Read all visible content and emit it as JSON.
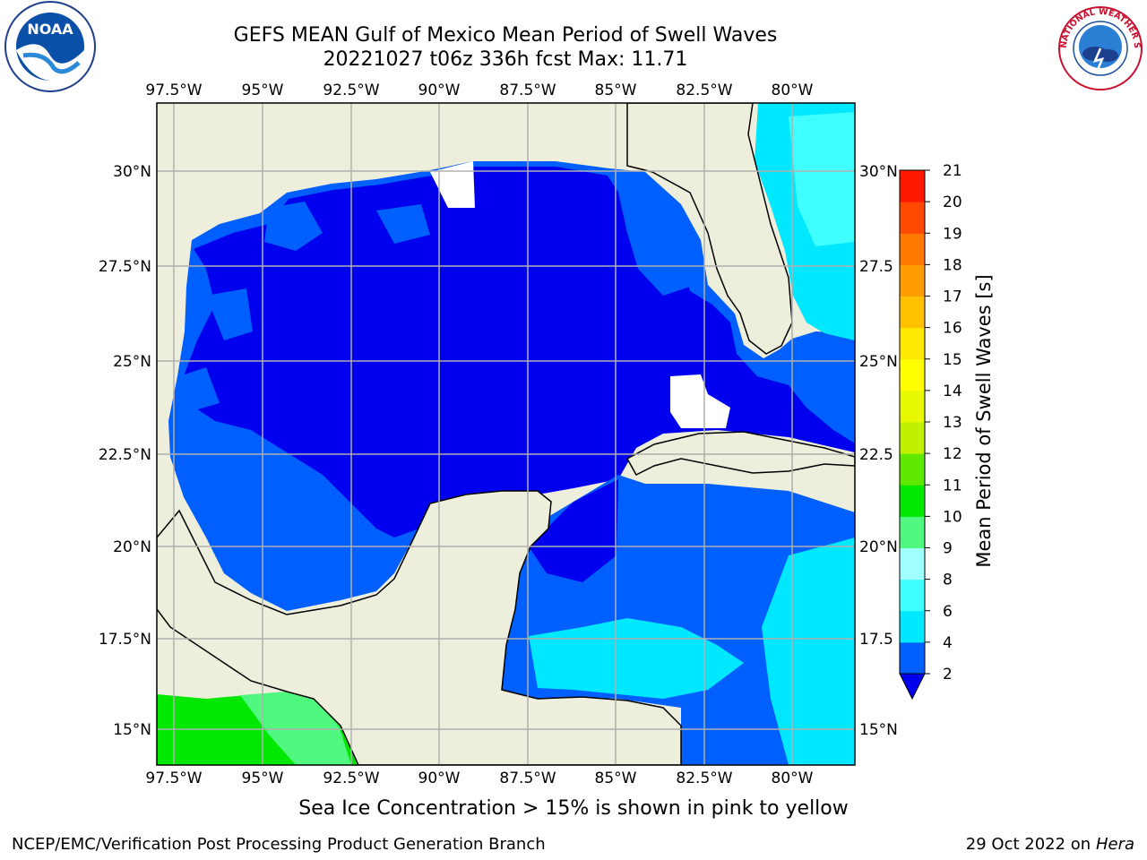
{
  "title": {
    "line1": "GEFS MEAN Gulf of Mexico Mean Period of Swell Waves",
    "line2": "20221027 t06z 336h fcst   Max: 11.71"
  },
  "map": {
    "lon_labels": [
      "97.5°W",
      "95°W",
      "92.5°W",
      "90°W",
      "87.5°W",
      "85°W",
      "82.5°W",
      "80°W"
    ],
    "lat_labels_left": [
      "30°N",
      "27.5°N",
      "25°N",
      "22.5°N",
      "20°N",
      "17.5°N",
      "15°N"
    ],
    "lat_labels_right": [
      "30°N",
      "27.5",
      "25°N",
      "22.5",
      "20°N",
      "17.5",
      "15°N"
    ],
    "colors": {
      "land": "#eeeedc",
      "grid": "#b0b0b0",
      "coast": "#000000"
    }
  },
  "colorbar": {
    "label": "Mean Period of Swell Waves [s]",
    "ticks": [
      "2",
      "4",
      "6",
      "8",
      "9",
      "10",
      "11",
      "12",
      "13",
      "14",
      "15",
      "16",
      "17",
      "18",
      "19",
      "20",
      "21"
    ],
    "colors": [
      "#0060ff",
      "#00e8ff",
      "#40ffff",
      "#a0ffff",
      "#50f880",
      "#00e800",
      "#60e800",
      "#c0f000",
      "#e8f800",
      "#ffff00",
      "#ffe800",
      "#ffc000",
      "#ff9c00",
      "#ff7800",
      "#ff4800",
      "#ff1800"
    ],
    "extend_color": "#0000ee"
  },
  "note": "Sea Ice Concentration > 15% is shown in pink to yellow",
  "footer": {
    "left": "NCEP/EMC/Verification Post Processing Product Generation Branch",
    "right_date": "29 Oct 2022 on",
    "right_host": "Hera"
  },
  "logos": {
    "noaa_text": "NOAA",
    "nws_text": "NATIONAL WEATHER SERVICE"
  }
}
